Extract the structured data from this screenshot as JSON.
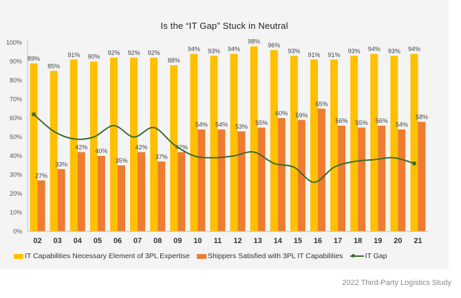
{
  "chart_data": {
    "type": "bar",
    "title": "Is the “IT Gap” Stuck in Neutral",
    "xlabel": "",
    "ylabel": "",
    "ylim": [
      0,
      100
    ],
    "y_ticks": [
      "0%",
      "10%",
      "20%",
      "30%",
      "40%",
      "50%",
      "60%",
      "70%",
      "80%",
      "90%",
      "100%"
    ],
    "categories": [
      "02",
      "03",
      "04",
      "05",
      "06",
      "07",
      "08",
      "09",
      "10",
      "11",
      "12",
      "13",
      "14",
      "15",
      "16",
      "17",
      "18",
      "19",
      "20",
      "21"
    ],
    "series": [
      {
        "name": "IT Capabilities Necessary Element of 3PL Expertise",
        "type": "bar",
        "color": "#ffc000",
        "values": [
          89,
          85,
          91,
          90,
          92,
          92,
          92,
          88,
          94,
          93,
          94,
          98,
          96,
          93,
          91,
          91,
          93,
          94,
          93,
          94
        ],
        "labels": [
          "89%",
          "85%",
          "91%",
          "90%",
          "92%",
          "92%",
          "92%",
          "88%",
          "94%",
          "93%",
          "94%",
          "98%",
          "96%",
          "93%",
          "91%",
          "91%",
          "93%",
          "94%",
          "93%",
          "94%"
        ]
      },
      {
        "name": "Shippers Satisfied with 3PL IT Capabilities",
        "type": "bar",
        "color": "#ed7d31",
        "values": [
          27,
          33,
          42,
          40,
          35,
          42,
          37,
          42,
          54,
          54,
          53,
          55,
          60,
          59,
          65,
          56,
          55,
          56,
          54,
          58
        ],
        "labels": [
          "27%",
          "33%",
          "42%",
          "40%",
          "35%",
          "42%",
          "37%",
          "42%",
          "54%",
          "54%",
          "53%",
          "55%",
          "60%",
          "59%",
          "65%",
          "56%",
          "55%",
          "56%",
          "54%",
          "58%"
        ]
      },
      {
        "name": "IT Gap",
        "type": "line",
        "smooth": true,
        "color": "#3a6b2a",
        "values": [
          62,
          53,
          49,
          50,
          56,
          50,
          55,
          46,
          40,
          39,
          40,
          42,
          36,
          34,
          26,
          34,
          37,
          38,
          39,
          36
        ]
      }
    ],
    "grid": false,
    "legend": "bottom"
  },
  "source": "2022 Third-Party Logistics Study"
}
